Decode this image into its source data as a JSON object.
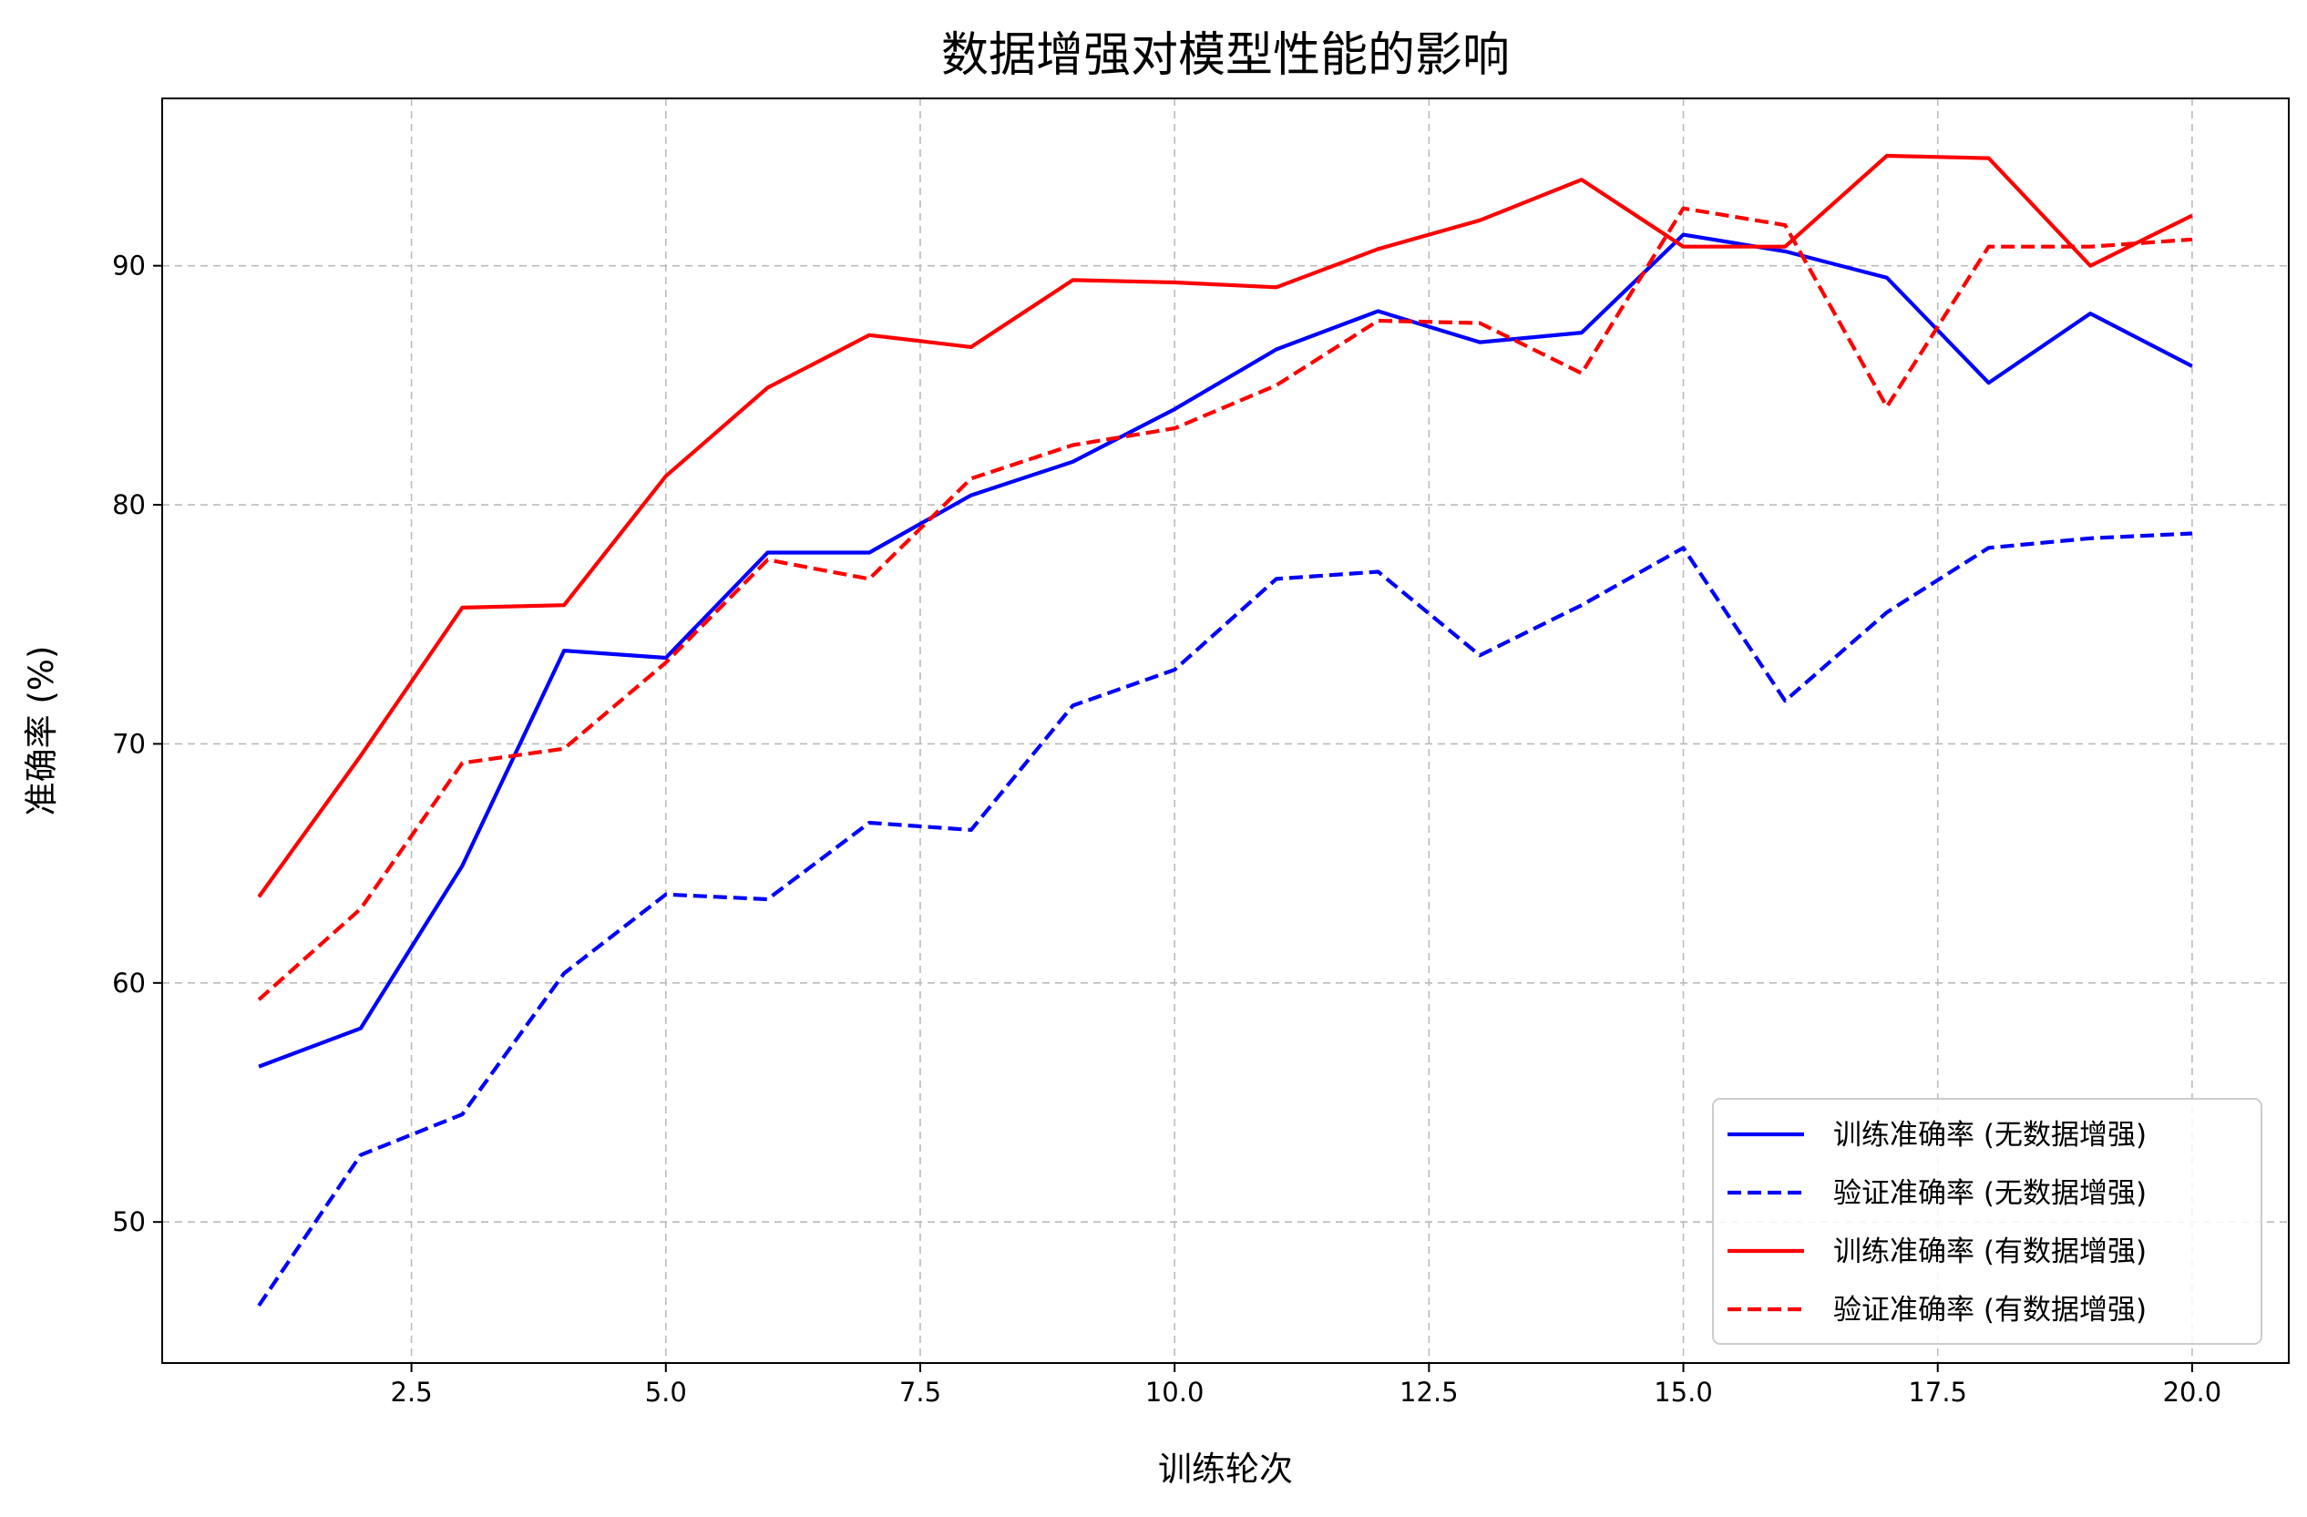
{
  "chart_data": {
    "type": "line",
    "title": "数据增强对模型性能的影响",
    "xlabel": "训练轮次",
    "ylabel": "准确率 (%)",
    "xlim": [
      0.05,
      20.95
    ],
    "ylim": [
      44.1,
      97.0
    ],
    "xticks": [
      2.5,
      5.0,
      7.5,
      10.0,
      12.5,
      15.0,
      17.5,
      20.0
    ],
    "xtick_labels": [
      "2.5",
      "5.0",
      "7.5",
      "10.0",
      "12.5",
      "15.0",
      "17.5",
      "20.0"
    ],
    "yticks": [
      50,
      60,
      70,
      80,
      90
    ],
    "ytick_labels": [
      "50",
      "60",
      "70",
      "80",
      "90"
    ],
    "grid": true,
    "legend_position": "bottom-right",
    "x": [
      1,
      2,
      3,
      4,
      5,
      6,
      7,
      8,
      9,
      10,
      11,
      12,
      13,
      14,
      15,
      16,
      17,
      18,
      19,
      20
    ],
    "series": [
      {
        "name": "训练准确率 (无数据增强)",
        "color": "#0000ff",
        "dash": "solid",
        "values": [
          56.5,
          58.1,
          64.9,
          73.9,
          73.6,
          78.0,
          78.0,
          80.4,
          81.8,
          84.0,
          86.5,
          88.1,
          86.8,
          87.2,
          91.3,
          90.6,
          89.5,
          85.1,
          88.0,
          85.8
        ]
      },
      {
        "name": "验证准确率 (无数据增强)",
        "color": "#0000ff",
        "dash": "dashed",
        "values": [
          46.5,
          52.8,
          54.5,
          60.4,
          63.7,
          63.5,
          66.7,
          66.4,
          71.6,
          73.1,
          76.9,
          77.2,
          73.7,
          75.8,
          78.2,
          71.8,
          75.5,
          78.2,
          78.6,
          78.8
        ]
      },
      {
        "name": "训练准确率 (有数据增强)",
        "color": "#ff0000",
        "dash": "solid",
        "values": [
          63.6,
          69.5,
          75.7,
          75.8,
          81.2,
          84.9,
          87.1,
          86.6,
          89.4,
          89.3,
          89.1,
          90.7,
          91.9,
          93.6,
          90.8,
          90.8,
          94.6,
          94.5,
          90.0,
          92.1
        ]
      },
      {
        "name": "验证准确率 (有数据增强)",
        "color": "#ff0000",
        "dash": "dashed",
        "values": [
          59.3,
          63.1,
          69.2,
          69.8,
          73.4,
          77.7,
          76.9,
          81.1,
          82.5,
          83.2,
          85.0,
          87.7,
          87.6,
          85.5,
          92.4,
          91.7,
          84.1,
          90.8,
          90.8,
          91.1
        ]
      }
    ]
  }
}
